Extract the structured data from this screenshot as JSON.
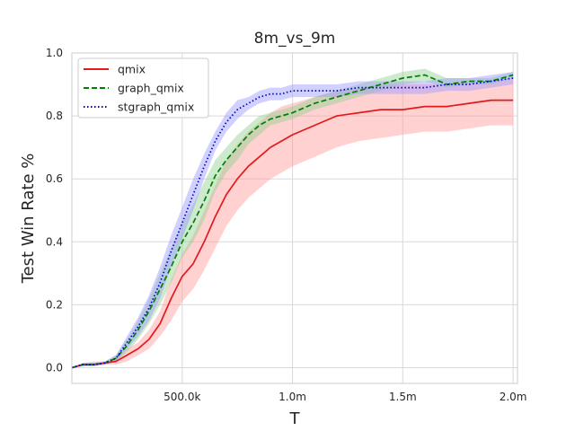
{
  "chart_data": {
    "type": "line",
    "title": "8m_vs_9m",
    "xlabel": "T",
    "ylabel": "Test Win Rate %",
    "xlim": [
      0,
      2020000
    ],
    "ylim": [
      -0.05,
      1.0
    ],
    "xticks": [
      {
        "value": 500000,
        "label": "500.0k"
      },
      {
        "value": 1000000,
        "label": "1.0m"
      },
      {
        "value": 1500000,
        "label": "1.5m"
      },
      {
        "value": 2000000,
        "label": "2.0m"
      }
    ],
    "yticks": [
      {
        "value": 0.0,
        "label": "0.0"
      },
      {
        "value": 0.2,
        "label": "0.2"
      },
      {
        "value": 0.4,
        "label": "0.4"
      },
      {
        "value": 0.6,
        "label": "0.6"
      },
      {
        "value": 0.8,
        "label": "0.8"
      },
      {
        "value": 1.0,
        "label": "1.0"
      }
    ],
    "grid": true,
    "legend_position": "top-left",
    "x": [
      0,
      50000,
      100000,
      150000,
      200000,
      250000,
      300000,
      350000,
      400000,
      450000,
      500000,
      550000,
      600000,
      650000,
      700000,
      750000,
      800000,
      850000,
      900000,
      950000,
      1000000,
      1100000,
      1200000,
      1300000,
      1400000,
      1500000,
      1600000,
      1700000,
      1800000,
      1900000,
      2000000
    ],
    "series": [
      {
        "name": "qmix",
        "color": "#e31a1c",
        "dash": "solid",
        "band_color": "#ff9999",
        "values": [
          0.0,
          0.01,
          0.01,
          0.015,
          0.02,
          0.04,
          0.06,
          0.09,
          0.14,
          0.22,
          0.29,
          0.33,
          0.4,
          0.48,
          0.55,
          0.6,
          0.64,
          0.67,
          0.7,
          0.72,
          0.74,
          0.77,
          0.8,
          0.81,
          0.82,
          0.82,
          0.83,
          0.83,
          0.84,
          0.85,
          0.85
        ],
        "lower": [
          0.0,
          0.005,
          0.005,
          0.01,
          0.01,
          0.02,
          0.04,
          0.06,
          0.1,
          0.15,
          0.21,
          0.25,
          0.31,
          0.38,
          0.45,
          0.5,
          0.54,
          0.57,
          0.6,
          0.62,
          0.64,
          0.67,
          0.7,
          0.72,
          0.73,
          0.74,
          0.75,
          0.75,
          0.76,
          0.77,
          0.77
        ],
        "upper": [
          0.0,
          0.015,
          0.02,
          0.02,
          0.03,
          0.06,
          0.08,
          0.12,
          0.18,
          0.28,
          0.36,
          0.42,
          0.5,
          0.58,
          0.66,
          0.71,
          0.75,
          0.78,
          0.81,
          0.83,
          0.84,
          0.86,
          0.88,
          0.89,
          0.9,
          0.9,
          0.9,
          0.9,
          0.91,
          0.91,
          0.92
        ]
      },
      {
        "name": "graph_qmix",
        "color": "#008000",
        "dash": "dashed",
        "band_color": "#90d090",
        "values": [
          0.0,
          0.01,
          0.01,
          0.015,
          0.03,
          0.07,
          0.12,
          0.18,
          0.25,
          0.32,
          0.4,
          0.46,
          0.53,
          0.61,
          0.66,
          0.7,
          0.74,
          0.77,
          0.79,
          0.8,
          0.81,
          0.84,
          0.86,
          0.88,
          0.9,
          0.92,
          0.93,
          0.9,
          0.91,
          0.91,
          0.93
        ],
        "lower": [
          0.0,
          0.005,
          0.005,
          0.01,
          0.02,
          0.05,
          0.09,
          0.14,
          0.2,
          0.27,
          0.35,
          0.4,
          0.47,
          0.56,
          0.62,
          0.66,
          0.71,
          0.74,
          0.77,
          0.78,
          0.79,
          0.82,
          0.84,
          0.86,
          0.88,
          0.9,
          0.91,
          0.89,
          0.9,
          0.9,
          0.92
        ],
        "upper": [
          0.0,
          0.015,
          0.015,
          0.02,
          0.04,
          0.09,
          0.15,
          0.22,
          0.3,
          0.38,
          0.46,
          0.52,
          0.59,
          0.66,
          0.7,
          0.74,
          0.77,
          0.8,
          0.81,
          0.82,
          0.83,
          0.86,
          0.88,
          0.9,
          0.92,
          0.94,
          0.95,
          0.92,
          0.92,
          0.92,
          0.94
        ]
      },
      {
        "name": "stgraph_qmix",
        "color": "#0000cc",
        "dash": "dotted",
        "band_color": "#9999ff",
        "values": [
          0.0,
          0.01,
          0.01,
          0.015,
          0.03,
          0.08,
          0.13,
          0.19,
          0.27,
          0.37,
          0.46,
          0.55,
          0.64,
          0.72,
          0.78,
          0.82,
          0.84,
          0.86,
          0.87,
          0.87,
          0.88,
          0.88,
          0.88,
          0.89,
          0.89,
          0.89,
          0.89,
          0.9,
          0.9,
          0.91,
          0.92
        ],
        "lower": [
          0.0,
          0.005,
          0.005,
          0.01,
          0.02,
          0.06,
          0.1,
          0.15,
          0.22,
          0.32,
          0.41,
          0.5,
          0.6,
          0.69,
          0.75,
          0.79,
          0.82,
          0.84,
          0.85,
          0.85,
          0.86,
          0.86,
          0.86,
          0.87,
          0.87,
          0.87,
          0.87,
          0.88,
          0.88,
          0.89,
          0.9
        ],
        "upper": [
          0.0,
          0.015,
          0.015,
          0.02,
          0.04,
          0.1,
          0.16,
          0.23,
          0.32,
          0.42,
          0.51,
          0.6,
          0.68,
          0.75,
          0.81,
          0.85,
          0.86,
          0.88,
          0.89,
          0.89,
          0.9,
          0.9,
          0.9,
          0.91,
          0.91,
          0.91,
          0.91,
          0.92,
          0.92,
          0.93,
          0.94
        ]
      }
    ]
  }
}
